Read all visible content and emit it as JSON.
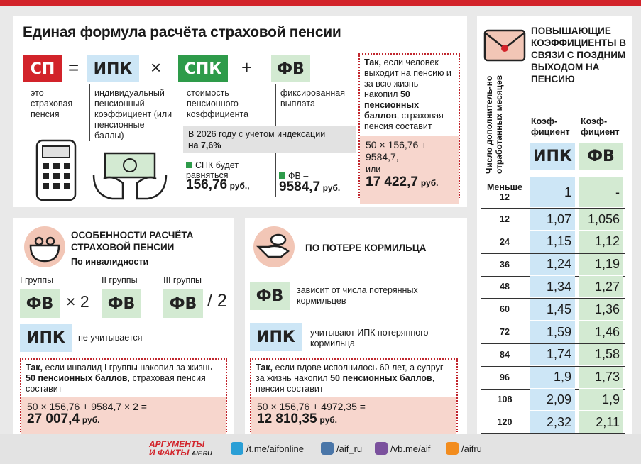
{
  "formula": {
    "title": "Единая формула расчёта страховой пенсии",
    "terms": [
      {
        "code": "СП",
        "desc": "это страховая пенсия"
      },
      {
        "code": "ИПК",
        "desc": "индивидуальный пенсионный коэффициент (или пенсионные баллы)"
      },
      {
        "code": "СПК",
        "desc": "стоимость пенсионного коэффициента"
      },
      {
        "code": "ФВ",
        "desc": "фиксированная выплата"
      }
    ],
    "operators": [
      "=",
      "×",
      "+"
    ],
    "note": {
      "text": "В 2026 году с учётом индексации",
      "highlight": "на 7,6%"
    },
    "spk_value": {
      "label": "СПК будет равняться",
      "value": "156,76",
      "unit": "руб.,"
    },
    "fv_value": {
      "label": "ФВ –",
      "value": "9584,7",
      "unit": "руб."
    },
    "example": {
      "lead": "Так,",
      "text1": "если человек выходит на пенсию и за всю жизнь накопил",
      "bold": "50 пенсионных баллов",
      "text2": ", страховая пенсия составит",
      "calc": "50 × 156,76 + 9584,7,",
      "or": "или",
      "result": "17 422,7",
      "unit": "руб."
    }
  },
  "disability": {
    "title": "ОСОБЕННОСТИ РАСЧЁТА СТРАХОВОЙ ПЕНСИИ",
    "subtitle": "По инвалидности",
    "groups": [
      {
        "label": "I группы",
        "code": "ФВ",
        "op": "× 2"
      },
      {
        "label": "II группы",
        "code": "ФВ"
      },
      {
        "label": "III группы",
        "code": "ФВ",
        "op": "/ 2"
      }
    ],
    "ipk": {
      "code": "ИПК",
      "text": "не учитывается"
    },
    "example": {
      "lead": "Так,",
      "text1": "если инвалид I группы накопил за жизнь",
      "bold": "50 пенсионных баллов",
      "text2": ", страховая пенсия составит",
      "calc": "50 × 156,76 + 9584,7 × 2 =",
      "result": "27 007,4",
      "unit": "руб."
    }
  },
  "survivor": {
    "title": "ПО ПОТЕРЕ КОРМИЛЬЦА",
    "items": [
      {
        "code": "ФВ",
        "text": "зависит от числа потерянных кормильцев"
      },
      {
        "code": "ИПК",
        "text": "учитывают ИПК потерянного кормильца"
      }
    ],
    "example": {
      "lead": "Так,",
      "text1": "если вдове исполнилось 60 лет, а супруг за жизнь накопил",
      "bold": "50 пенсионных баллов",
      "text2": ", пенсия составит",
      "calc": "50 × 156,76 + 4972,35 =",
      "result": "12 810,35",
      "unit": "руб."
    }
  },
  "coefficients": {
    "title": "ПОВЫШАЮЩИЕ КОЭФФИЦИЕНТЫ В СВЯЗИ С ПОЗДНИМ ВЫХОДОМ НА ПЕНСИЮ",
    "row_header": "Число дополнитель-но отработанных месяцев",
    "columns": [
      {
        "label": "Коэф-фициент",
        "code": "ИПК"
      },
      {
        "label": "Коэф-фициент",
        "code": "ФВ"
      }
    ],
    "rows": [
      [
        "Меньше 12",
        "1",
        "-"
      ],
      [
        "12",
        "1,07",
        "1,056"
      ],
      [
        "24",
        "1,15",
        "1,12"
      ],
      [
        "36",
        "1,24",
        "1,19"
      ],
      [
        "48",
        "1,34",
        "1,27"
      ],
      [
        "60",
        "1,45",
        "1,36"
      ],
      [
        "72",
        "1,59",
        "1,46"
      ],
      [
        "84",
        "1,74",
        "1,58"
      ],
      [
        "96",
        "1,9",
        "1,73"
      ],
      [
        "108",
        "2,09",
        "1,9"
      ],
      [
        "120",
        "2,32",
        "2,11"
      ]
    ]
  },
  "footer": {
    "logo": {
      "line1": "АРГУМЕНТЫ",
      "line2": "И ФАКТЫ",
      "site": "AIF.RU"
    },
    "links": [
      "/t.me/aifonline",
      "/aif_ru",
      "/vb.me/aif",
      "/aifru"
    ]
  }
}
